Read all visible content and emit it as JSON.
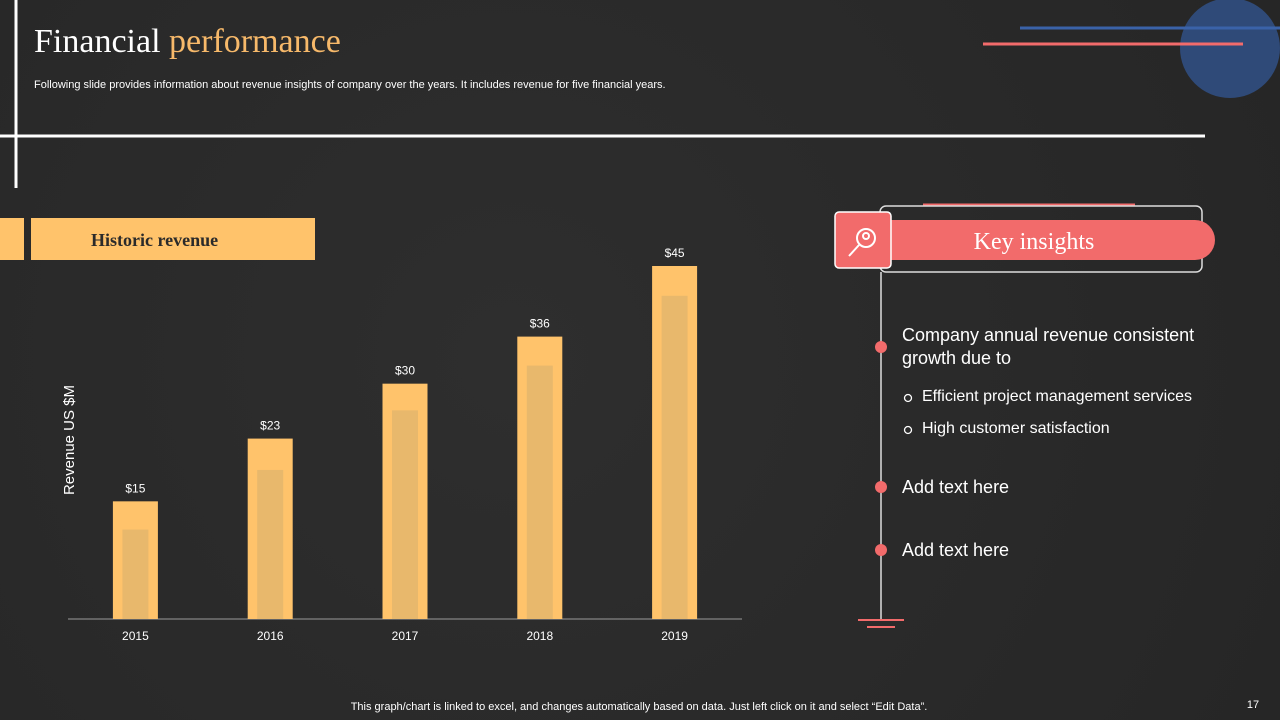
{
  "header": {
    "title_first": "Financial",
    "title_second": "performance",
    "subtitle": "Following slide provides information about revenue insights of company over the years. It includes revenue for five financial years."
  },
  "chart_data": {
    "type": "bar",
    "title": "Historic revenue",
    "y_label": "Revenue  US $M",
    "categories": [
      "2015",
      "2016",
      "2017",
      "2018",
      "2019"
    ],
    "series": [
      {
        "color": "#ffc36b",
        "values": [
          15,
          23,
          30,
          36,
          45
        ],
        "value_labels": [
          "$15",
          "$23",
          "$30",
          "$36",
          "$45"
        ]
      },
      {
        "color": "#e8b86c",
        "values": [
          11.4,
          19,
          26.6,
          32.3,
          41.2
        ]
      }
    ],
    "ylim": [
      0,
      45
    ]
  },
  "insights": {
    "title": "Key insights",
    "items": [
      {
        "text": "Company annual revenue consistent growth due to",
        "subpoints": [
          "Efficient project management services",
          "High customer satisfaction"
        ]
      },
      {
        "text": "Add text here"
      },
      {
        "text": "Add text here"
      }
    ]
  },
  "footer": {
    "note": "This graph/chart is linked to excel,  and changes automatically based on data. Just left click on it and select “Edit Data”.",
    "page_number": "17"
  }
}
